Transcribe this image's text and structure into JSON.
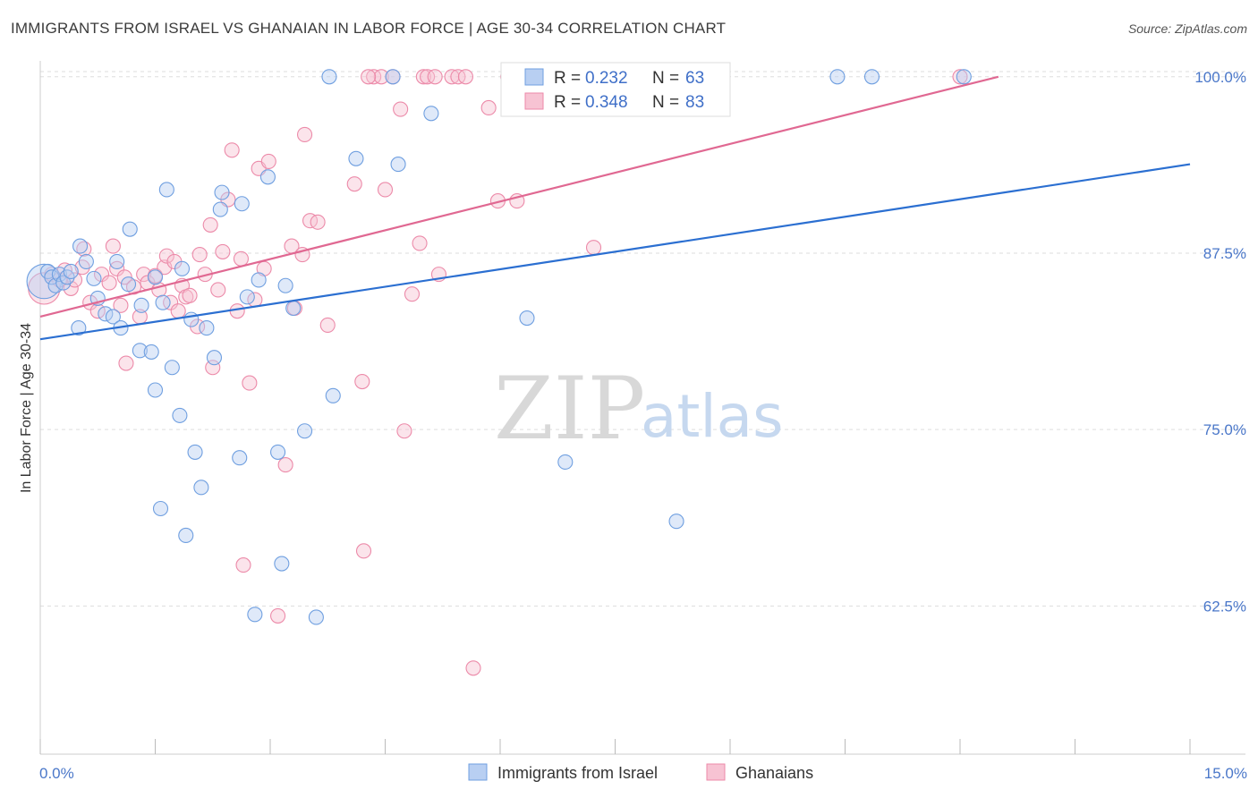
{
  "title": "IMMIGRANTS FROM ISRAEL VS GHANAIAN IN LABOR FORCE | AGE 30-34 CORRELATION CHART",
  "source": "Source: ZipAtlas.com",
  "watermark": {
    "zip": "ZIP",
    "atlas": "atlas"
  },
  "colors": {
    "blue": "#6f9fe0",
    "blue_fill": "#b8cff2",
    "blue_line": "#2b6fd1",
    "pink": "#ec8aa9",
    "pink_fill": "#f7c3d3",
    "pink_line": "#e06892",
    "tick_label": "#4a77c9"
  },
  "legend": {
    "rows": [
      {
        "r_label": "R = ",
        "r_value": "0.232",
        "n_label": "N = ",
        "n_value": "63"
      },
      {
        "r_label": "R = ",
        "r_value": "0.348",
        "n_label": "N = ",
        "n_value": "83"
      }
    ]
  },
  "chart_data": {
    "type": "scatter",
    "title": "IMMIGRANTS FROM ISRAEL VS GHANAIAN IN LABOR FORCE | AGE 30-34 CORRELATION CHART",
    "xlabel": "",
    "ylabel": "In Labor Force | Age 30-34",
    "xlim": [
      0,
      15
    ],
    "ylim": [
      52,
      101
    ],
    "x_tick_labels": [
      "0.0%",
      "15.0%"
    ],
    "y_ticks": [
      62.5,
      75.0,
      87.5,
      100.0
    ],
    "y_tick_labels": [
      "62.5%",
      "75.0%",
      "87.5%",
      "100.0%"
    ],
    "grid": true,
    "legend_position": "top-center",
    "series": [
      {
        "name": "Immigrants from Israel",
        "color": "#6f9fe0",
        "trend": {
          "x": [
            0,
            15
          ],
          "y": [
            81.4,
            93.8
          ]
        },
        "points": [
          {
            "x": 0.05,
            "y": 85.5,
            "s": 24
          },
          {
            "x": 0.1,
            "y": 86.2,
            "s": 10
          },
          {
            "x": 0.15,
            "y": 85.8,
            "s": 10
          },
          {
            "x": 0.2,
            "y": 85.2,
            "s": 10
          },
          {
            "x": 0.25,
            "y": 86.0,
            "s": 10
          },
          {
            "x": 0.3,
            "y": 85.4,
            "s": 10
          },
          {
            "x": 0.35,
            "y": 85.8,
            "s": 10
          },
          {
            "x": 0.4,
            "y": 86.2,
            "s": 10
          },
          {
            "x": 0.5,
            "y": 82.2,
            "s": 10
          },
          {
            "x": 0.52,
            "y": 88.0,
            "s": 10
          },
          {
            "x": 0.6,
            "y": 86.9,
            "s": 10
          },
          {
            "x": 0.7,
            "y": 85.7,
            "s": 10
          },
          {
            "x": 0.75,
            "y": 84.3,
            "s": 10
          },
          {
            "x": 0.85,
            "y": 83.2,
            "s": 10
          },
          {
            "x": 0.95,
            "y": 83.0,
            "s": 10
          },
          {
            "x": 1.0,
            "y": 86.9,
            "s": 10
          },
          {
            "x": 1.05,
            "y": 82.2,
            "s": 10
          },
          {
            "x": 1.15,
            "y": 85.3,
            "s": 10
          },
          {
            "x": 1.17,
            "y": 89.2,
            "s": 10
          },
          {
            "x": 1.3,
            "y": 80.6,
            "s": 10
          },
          {
            "x": 1.32,
            "y": 83.8,
            "s": 10
          },
          {
            "x": 1.45,
            "y": 80.5,
            "s": 10
          },
          {
            "x": 1.5,
            "y": 85.8,
            "s": 10
          },
          {
            "x": 1.5,
            "y": 77.8,
            "s": 10
          },
          {
            "x": 1.57,
            "y": 69.4,
            "s": 10
          },
          {
            "x": 1.6,
            "y": 84.0,
            "s": 10
          },
          {
            "x": 1.65,
            "y": 92.0,
            "s": 10
          },
          {
            "x": 1.72,
            "y": 79.4,
            "s": 10
          },
          {
            "x": 1.82,
            "y": 76.0,
            "s": 10
          },
          {
            "x": 1.85,
            "y": 86.4,
            "s": 10
          },
          {
            "x": 1.9,
            "y": 67.5,
            "s": 10
          },
          {
            "x": 1.97,
            "y": 82.8,
            "s": 10
          },
          {
            "x": 2.02,
            "y": 73.4,
            "s": 10
          },
          {
            "x": 2.1,
            "y": 70.9,
            "s": 10
          },
          {
            "x": 2.17,
            "y": 82.2,
            "s": 10
          },
          {
            "x": 2.27,
            "y": 80.1,
            "s": 10
          },
          {
            "x": 2.35,
            "y": 90.6,
            "s": 10
          },
          {
            "x": 2.37,
            "y": 91.8,
            "s": 10
          },
          {
            "x": 2.6,
            "y": 73.0,
            "s": 10
          },
          {
            "x": 2.63,
            "y": 91.0,
            "s": 10
          },
          {
            "x": 2.7,
            "y": 84.4,
            "s": 10
          },
          {
            "x": 2.8,
            "y": 61.9,
            "s": 10
          },
          {
            "x": 2.85,
            "y": 85.6,
            "s": 10
          },
          {
            "x": 2.97,
            "y": 92.9,
            "s": 10
          },
          {
            "x": 3.1,
            "y": 73.4,
            "s": 10
          },
          {
            "x": 3.15,
            "y": 65.5,
            "s": 10
          },
          {
            "x": 3.2,
            "y": 85.2,
            "s": 10
          },
          {
            "x": 3.3,
            "y": 83.6,
            "s": 10
          },
          {
            "x": 3.45,
            "y": 74.9,
            "s": 10
          },
          {
            "x": 3.6,
            "y": 61.7,
            "s": 10
          },
          {
            "x": 3.77,
            "y": 100.0,
            "s": 10
          },
          {
            "x": 3.82,
            "y": 77.4,
            "s": 10
          },
          {
            "x": 4.12,
            "y": 94.2,
            "s": 10
          },
          {
            "x": 4.6,
            "y": 100.0,
            "s": 10
          },
          {
            "x": 4.67,
            "y": 93.8,
            "s": 10
          },
          {
            "x": 5.1,
            "y": 97.4,
            "s": 10
          },
          {
            "x": 6.35,
            "y": 82.9,
            "s": 10
          },
          {
            "x": 6.85,
            "y": 72.7,
            "s": 10
          },
          {
            "x": 7.6,
            "y": 100.0,
            "s": 10
          },
          {
            "x": 8.3,
            "y": 68.5,
            "s": 10
          },
          {
            "x": 10.4,
            "y": 100.0,
            "s": 10
          },
          {
            "x": 10.85,
            "y": 100.0,
            "s": 10
          },
          {
            "x": 12.05,
            "y": 100.0,
            "s": 10
          }
        ]
      },
      {
        "name": "Ghanaians",
        "color": "#ec8aa9",
        "trend": {
          "x": [
            0,
            12.5
          ],
          "y": [
            83.0,
            100.0
          ]
        },
        "points": [
          {
            "x": 0.05,
            "y": 85.0,
            "s": 22
          },
          {
            "x": 0.15,
            "y": 86.0,
            "s": 10
          },
          {
            "x": 0.25,
            "y": 85.6,
            "s": 10
          },
          {
            "x": 0.32,
            "y": 86.3,
            "s": 10
          },
          {
            "x": 0.4,
            "y": 85.0,
            "s": 10
          },
          {
            "x": 0.45,
            "y": 85.6,
            "s": 10
          },
          {
            "x": 0.55,
            "y": 86.5,
            "s": 10
          },
          {
            "x": 0.57,
            "y": 87.8,
            "s": 10
          },
          {
            "x": 0.65,
            "y": 84.0,
            "s": 10
          },
          {
            "x": 0.75,
            "y": 83.4,
            "s": 10
          },
          {
            "x": 0.8,
            "y": 86.0,
            "s": 10
          },
          {
            "x": 0.9,
            "y": 85.4,
            "s": 10
          },
          {
            "x": 0.95,
            "y": 88.0,
            "s": 10
          },
          {
            "x": 1.0,
            "y": 86.4,
            "s": 10
          },
          {
            "x": 1.05,
            "y": 83.8,
            "s": 10
          },
          {
            "x": 1.1,
            "y": 85.8,
            "s": 10
          },
          {
            "x": 1.12,
            "y": 79.7,
            "s": 10
          },
          {
            "x": 1.22,
            "y": 85.1,
            "s": 10
          },
          {
            "x": 1.3,
            "y": 83.0,
            "s": 10
          },
          {
            "x": 1.35,
            "y": 86.0,
            "s": 10
          },
          {
            "x": 1.4,
            "y": 85.4,
            "s": 10
          },
          {
            "x": 1.5,
            "y": 85.9,
            "s": 10
          },
          {
            "x": 1.55,
            "y": 84.9,
            "s": 10
          },
          {
            "x": 1.62,
            "y": 86.5,
            "s": 10
          },
          {
            "x": 1.65,
            "y": 87.3,
            "s": 10
          },
          {
            "x": 1.7,
            "y": 84.0,
            "s": 10
          },
          {
            "x": 1.75,
            "y": 86.9,
            "s": 10
          },
          {
            "x": 1.8,
            "y": 83.4,
            "s": 10
          },
          {
            "x": 1.85,
            "y": 85.2,
            "s": 10
          },
          {
            "x": 1.9,
            "y": 84.4,
            "s": 10
          },
          {
            "x": 1.95,
            "y": 84.5,
            "s": 10
          },
          {
            "x": 2.05,
            "y": 82.3,
            "s": 10
          },
          {
            "x": 2.08,
            "y": 87.4,
            "s": 10
          },
          {
            "x": 2.15,
            "y": 86.0,
            "s": 10
          },
          {
            "x": 2.22,
            "y": 89.5,
            "s": 10
          },
          {
            "x": 2.25,
            "y": 79.4,
            "s": 10
          },
          {
            "x": 2.32,
            "y": 84.9,
            "s": 10
          },
          {
            "x": 2.38,
            "y": 87.6,
            "s": 10
          },
          {
            "x": 2.45,
            "y": 91.3,
            "s": 10
          },
          {
            "x": 2.5,
            "y": 94.8,
            "s": 10
          },
          {
            "x": 2.57,
            "y": 83.4,
            "s": 10
          },
          {
            "x": 2.62,
            "y": 87.1,
            "s": 10
          },
          {
            "x": 2.65,
            "y": 65.4,
            "s": 10
          },
          {
            "x": 2.73,
            "y": 78.3,
            "s": 10
          },
          {
            "x": 2.8,
            "y": 84.2,
            "s": 10
          },
          {
            "x": 2.85,
            "y": 93.5,
            "s": 10
          },
          {
            "x": 2.92,
            "y": 86.4,
            "s": 10
          },
          {
            "x": 2.98,
            "y": 94.0,
            "s": 10
          },
          {
            "x": 3.1,
            "y": 61.8,
            "s": 10
          },
          {
            "x": 3.2,
            "y": 72.5,
            "s": 10
          },
          {
            "x": 3.28,
            "y": 88.0,
            "s": 10
          },
          {
            "x": 3.32,
            "y": 83.6,
            "s": 10
          },
          {
            "x": 3.42,
            "y": 87.4,
            "s": 10
          },
          {
            "x": 3.45,
            "y": 95.9,
            "s": 10
          },
          {
            "x": 3.52,
            "y": 89.8,
            "s": 10
          },
          {
            "x": 3.62,
            "y": 89.7,
            "s": 10
          },
          {
            "x": 3.75,
            "y": 82.4,
            "s": 10
          },
          {
            "x": 4.1,
            "y": 92.4,
            "s": 10
          },
          {
            "x": 4.2,
            "y": 78.4,
            "s": 10
          },
          {
            "x": 4.22,
            "y": 66.4,
            "s": 10
          },
          {
            "x": 4.35,
            "y": 100.0,
            "s": 10
          },
          {
            "x": 4.45,
            "y": 100.0,
            "s": 10
          },
          {
            "x": 4.5,
            "y": 92.0,
            "s": 10
          },
          {
            "x": 4.6,
            "y": 100.0,
            "s": 10
          },
          {
            "x": 4.7,
            "y": 97.7,
            "s": 10
          },
          {
            "x": 4.75,
            "y": 74.9,
            "s": 10
          },
          {
            "x": 4.85,
            "y": 84.6,
            "s": 10
          },
          {
            "x": 4.95,
            "y": 88.2,
            "s": 10
          },
          {
            "x": 5.0,
            "y": 100.0,
            "s": 10
          },
          {
            "x": 5.05,
            "y": 100.0,
            "s": 10
          },
          {
            "x": 5.15,
            "y": 100.0,
            "s": 10
          },
          {
            "x": 5.2,
            "y": 86.0,
            "s": 10
          },
          {
            "x": 5.37,
            "y": 100.0,
            "s": 10
          },
          {
            "x": 5.45,
            "y": 100.0,
            "s": 10
          },
          {
            "x": 5.55,
            "y": 100.0,
            "s": 10
          },
          {
            "x": 5.65,
            "y": 58.1,
            "s": 10
          },
          {
            "x": 5.85,
            "y": 97.8,
            "s": 10
          },
          {
            "x": 5.97,
            "y": 91.2,
            "s": 10
          },
          {
            "x": 6.1,
            "y": 100.0,
            "s": 10
          },
          {
            "x": 6.22,
            "y": 91.2,
            "s": 10
          },
          {
            "x": 7.22,
            "y": 87.9,
            "s": 10
          },
          {
            "x": 12.0,
            "y": 100.0,
            "s": 10
          },
          {
            "x": 4.28,
            "y": 100.0,
            "s": 10
          }
        ]
      }
    ]
  }
}
